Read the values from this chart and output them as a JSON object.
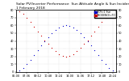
{
  "title": "Solar PV/Inverter Performance  Sun Altitude Angle & Sun Incidence Angle on PV Panels",
  "title_date": "1 February 2018",
  "legend_labels": [
    "HOY=1 Sun",
    "INCIDENCE=TO"
  ],
  "legend_colors": [
    "#0000cd",
    "#cc0000"
  ],
  "background_color": "#ffffff",
  "grid_color": "#888888",
  "ylim": [
    0,
    80
  ],
  "xlim": [
    0,
    28
  ],
  "blue_x": [
    1,
    2,
    3,
    4,
    5,
    6,
    7,
    8,
    9,
    10,
    11,
    12,
    13,
    14,
    15,
    16,
    17,
    18,
    19,
    20,
    21,
    22,
    23,
    24,
    25,
    26,
    27
  ],
  "blue_y": [
    2,
    5,
    10,
    16,
    22,
    28,
    34,
    40,
    45,
    50,
    54,
    57,
    59,
    60,
    59,
    57,
    54,
    50,
    45,
    40,
    34,
    28,
    22,
    16,
    10,
    5,
    2
  ],
  "red_x": [
    1,
    2,
    3,
    4,
    5,
    6,
    7,
    8,
    9,
    10,
    11,
    12,
    13,
    14,
    15,
    16,
    17,
    18,
    19,
    20,
    21,
    22,
    23,
    24,
    25,
    26,
    27
  ],
  "red_y": [
    78,
    75,
    70,
    64,
    58,
    52,
    47,
    41,
    36,
    31,
    27,
    23,
    21,
    20,
    21,
    23,
    27,
    31,
    36,
    41,
    47,
    52,
    58,
    64,
    70,
    75,
    78
  ],
  "xtick_positions": [
    0,
    3,
    6,
    9,
    12,
    15,
    18,
    21,
    24,
    27
  ],
  "xtick_labels": [
    "06:00",
    "07:36",
    "09:12",
    "10:48",
    "12:24",
    "14:00",
    "15:36",
    "17:12",
    "18:48",
    "20:24"
  ],
  "ytick_positions": [
    0,
    10,
    20,
    30,
    40,
    50,
    60,
    70,
    80
  ],
  "ytick_labels": [
    "0",
    "10",
    "20",
    "30",
    "40",
    "50",
    "60",
    "70",
    "80"
  ],
  "title_fontsize": 3.2,
  "tick_fontsize": 2.5,
  "legend_fontsize": 2.2,
  "dot_size": 0.8
}
